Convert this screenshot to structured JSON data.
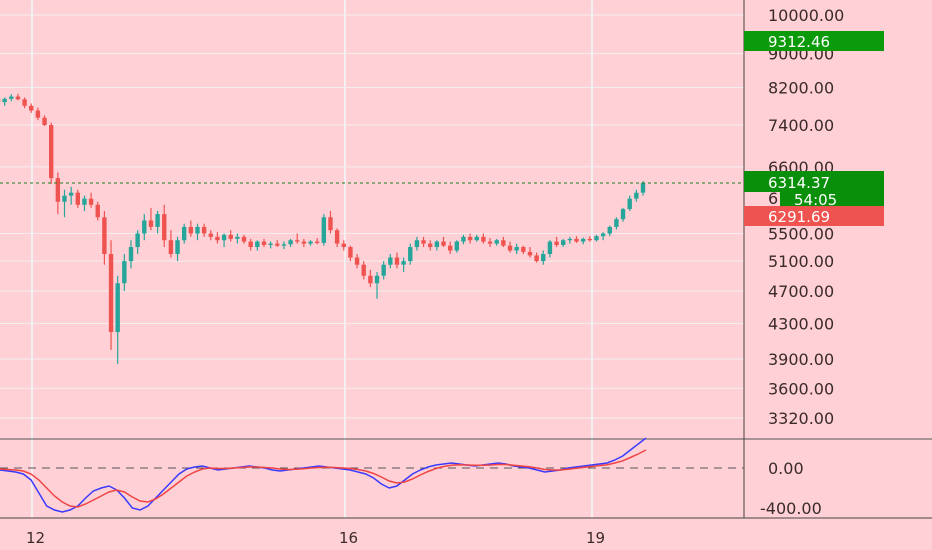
{
  "chart_data": [
    {
      "type": "candlestick",
      "price_axis": {
        "scale": "log",
        "ticks": [
          "10000.00",
          "9000.00",
          "8200.00",
          "7400.00",
          "6600.00",
          "5500.00",
          "5100.00",
          "4700.00",
          "4300.00",
          "3900.00",
          "3600.00",
          "3320.00"
        ]
      },
      "time_axis": {
        "ticks": [
          "12",
          "16",
          "19"
        ]
      },
      "price_tags": [
        {
          "label": "9312.46",
          "color": "#0a9a0a"
        },
        {
          "label": "6314.37",
          "color": "#098f0a"
        },
        {
          "label": "54:05",
          "color": "#098f0a"
        },
        {
          "label": "6291.69",
          "color": "#ef5350"
        }
      ],
      "partially_hidden_tick": "61",
      "current_price_line": 6314.37,
      "up_color": "#26a69a",
      "down_color": "#ef5350",
      "candles": [
        [
          7950,
          8000,
          7850,
          7880
        ],
        [
          7880,
          7980,
          7800,
          7950
        ],
        [
          7950,
          8050,
          7900,
          8000
        ],
        [
          8000,
          8060,
          7920,
          7940
        ],
        [
          7940,
          7980,
          7750,
          7800
        ],
        [
          7800,
          7850,
          7650,
          7700
        ],
        [
          7700,
          7760,
          7500,
          7550
        ],
        [
          7550,
          7600,
          7380,
          7400
        ],
        [
          7400,
          7450,
          6300,
          6400
        ],
        [
          6400,
          6500,
          5800,
          6000
        ],
        [
          6000,
          6200,
          5750,
          6100
        ],
        [
          6100,
          6250,
          5950,
          6150
        ],
        [
          6150,
          6200,
          5900,
          5950
        ],
        [
          5950,
          6100,
          5850,
          6050
        ],
        [
          6050,
          6150,
          5900,
          5950
        ],
        [
          5950,
          6000,
          5700,
          5750
        ],
        [
          5750,
          5850,
          5050,
          5200
        ],
        [
          5200,
          5400,
          4000,
          4200
        ],
        [
          4200,
          4900,
          3850,
          4800
        ],
        [
          4800,
          5200,
          4700,
          5100
        ],
        [
          5100,
          5400,
          5000,
          5300
        ],
        [
          5300,
          5550,
          5200,
          5500
        ],
        [
          5500,
          5800,
          5400,
          5700
        ],
        [
          5700,
          5900,
          5550,
          5600
        ],
        [
          5600,
          5850,
          5500,
          5800
        ],
        [
          5800,
          5950,
          5300,
          5400
        ],
        [
          5400,
          5550,
          5150,
          5200
        ],
        [
          5200,
          5450,
          5100,
          5400
        ],
        [
          5400,
          5650,
          5350,
          5600
        ],
        [
          5600,
          5700,
          5450,
          5500
        ],
        [
          5500,
          5650,
          5400,
          5600
        ],
        [
          5600,
          5650,
          5450,
          5500
        ],
        [
          5500,
          5550,
          5400,
          5450
        ],
        [
          5450,
          5520,
          5350,
          5400
        ],
        [
          5400,
          5500,
          5300,
          5480
        ],
        [
          5480,
          5550,
          5380,
          5420
        ],
        [
          5420,
          5500,
          5350,
          5450
        ],
        [
          5450,
          5480,
          5350,
          5380
        ],
        [
          5380,
          5420,
          5250,
          5300
        ],
        [
          5300,
          5400,
          5250,
          5380
        ],
        [
          5380,
          5420,
          5300,
          5330
        ],
        [
          5330,
          5380,
          5280,
          5350
        ],
        [
          5350,
          5400,
          5300,
          5320
        ],
        [
          5320,
          5380,
          5270,
          5340
        ],
        [
          5340,
          5420,
          5300,
          5400
        ],
        [
          5400,
          5500,
          5350,
          5380
        ],
        [
          5380,
          5420,
          5300,
          5350
        ],
        [
          5350,
          5400,
          5320,
          5380
        ],
        [
          5380,
          5430,
          5340,
          5360
        ],
        [
          5360,
          5800,
          5320,
          5750
        ],
        [
          5750,
          5850,
          5500,
          5550
        ],
        [
          5550,
          5580,
          5300,
          5350
        ],
        [
          5350,
          5400,
          5250,
          5300
        ],
        [
          5300,
          5320,
          5100,
          5150
        ],
        [
          5150,
          5200,
          5000,
          5050
        ],
        [
          5050,
          5100,
          4850,
          4900
        ],
        [
          4900,
          4980,
          4750,
          4800
        ],
        [
          4800,
          4950,
          4600,
          4900
        ],
        [
          4900,
          5100,
          4850,
          5050
        ],
        [
          5050,
          5200,
          5000,
          5150
        ],
        [
          5150,
          5220,
          5000,
          5050
        ],
        [
          5050,
          5150,
          4950,
          5100
        ],
        [
          5100,
          5350,
          5050,
          5300
        ],
        [
          5300,
          5450,
          5250,
          5400
        ],
        [
          5400,
          5450,
          5300,
          5350
        ],
        [
          5350,
          5400,
          5250,
          5300
        ],
        [
          5300,
          5400,
          5250,
          5380
        ],
        [
          5380,
          5450,
          5300,
          5320
        ],
        [
          5320,
          5380,
          5200,
          5250
        ],
        [
          5250,
          5400,
          5220,
          5380
        ],
        [
          5380,
          5480,
          5340,
          5450
        ],
        [
          5450,
          5500,
          5350,
          5400
        ],
        [
          5400,
          5480,
          5380,
          5450
        ],
        [
          5450,
          5500,
          5350,
          5380
        ],
        [
          5380,
          5430,
          5300,
          5350
        ],
        [
          5350,
          5420,
          5320,
          5400
        ],
        [
          5400,
          5450,
          5300,
          5320
        ],
        [
          5320,
          5380,
          5220,
          5250
        ],
        [
          5250,
          5350,
          5200,
          5300
        ],
        [
          5300,
          5320,
          5200,
          5230
        ],
        [
          5230,
          5300,
          5150,
          5180
        ],
        [
          5180,
          5220,
          5080,
          5100
        ],
        [
          5100,
          5250,
          5050,
          5200
        ],
        [
          5200,
          5400,
          5150,
          5380
        ],
        [
          5380,
          5450,
          5300,
          5330
        ],
        [
          5330,
          5420,
          5300,
          5400
        ],
        [
          5400,
          5450,
          5350,
          5420
        ],
        [
          5420,
          5460,
          5360,
          5380
        ],
        [
          5380,
          5440,
          5340,
          5420
        ],
        [
          5420,
          5460,
          5380,
          5400
        ],
        [
          5400,
          5480,
          5380,
          5460
        ],
        [
          5460,
          5520,
          5400,
          5500
        ],
        [
          5500,
          5620,
          5460,
          5600
        ],
        [
          5600,
          5750,
          5560,
          5720
        ],
        [
          5720,
          5900,
          5680,
          5880
        ],
        [
          5880,
          6100,
          5850,
          6050
        ],
        [
          6050,
          6200,
          6000,
          6150
        ],
        [
          6150,
          6350,
          6100,
          6314.37
        ]
      ]
    },
    {
      "type": "line",
      "name": "oscillator",
      "ticks": [
        "0.00",
        "-400.00"
      ],
      "series": [
        {
          "color": "#3a3aff",
          "values": [
            -20,
            -30,
            -40,
            -60,
            -120,
            -250,
            -380,
            -420,
            -440,
            -420,
            -380,
            -300,
            -230,
            -200,
            -180,
            -220,
            -300,
            -400,
            -420,
            -380,
            -300,
            -220,
            -140,
            -60,
            -10,
            10,
            20,
            0,
            -20,
            -10,
            0,
            10,
            20,
            10,
            0,
            -20,
            -30,
            -20,
            -10,
            0,
            10,
            20,
            10,
            0,
            -10,
            -20,
            -40,
            -60,
            -100,
            -160,
            -200,
            -180,
            -120,
            -60,
            -20,
            10,
            30,
            40,
            50,
            40,
            30,
            20,
            30,
            40,
            50,
            40,
            20,
            10,
            0,
            -20,
            -40,
            -30,
            -20,
            0,
            10,
            20,
            30,
            40,
            50,
            80,
            120,
            180,
            240,
            300
          ]
        },
        {
          "color": "#ef4444",
          "values": [
            -10,
            -15,
            -20,
            -30,
            -60,
            -120,
            -200,
            -280,
            -340,
            -380,
            -390,
            -360,
            -320,
            -280,
            -240,
            -220,
            -240,
            -290,
            -330,
            -340,
            -310,
            -260,
            -200,
            -140,
            -80,
            -40,
            -10,
            0,
            -5,
            -5,
            0,
            5,
            10,
            10,
            5,
            0,
            -10,
            -15,
            -12,
            -8,
            0,
            5,
            8,
            5,
            0,
            -5,
            -15,
            -30,
            -55,
            -90,
            -130,
            -150,
            -140,
            -110,
            -70,
            -35,
            -5,
            15,
            28,
            32,
            30,
            27,
            27,
            30,
            35,
            35,
            28,
            20,
            12,
            0,
            -15,
            -20,
            -20,
            -12,
            -3,
            6,
            15,
            24,
            33,
            50,
            72,
            105,
            140,
            180
          ]
        }
      ]
    }
  ]
}
